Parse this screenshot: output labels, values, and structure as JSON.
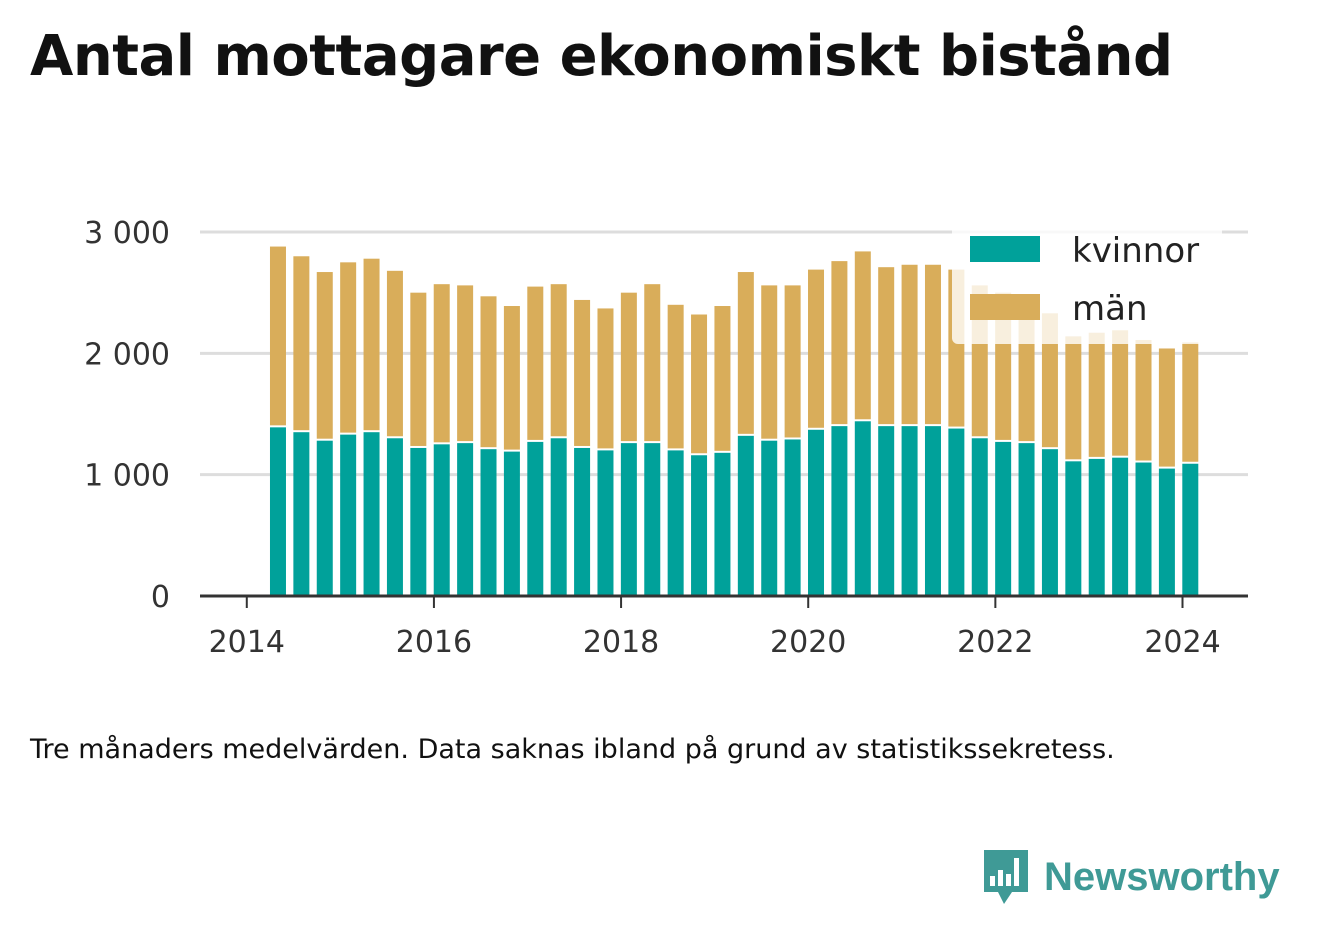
{
  "title": "Antal mottagare ekonomiskt bistånd",
  "note": "Tre månaders medelvärden. Data saknas ibland på grund av statistikssekretess.",
  "brand": {
    "name": "Newsworthy",
    "icon": "bar-chart-speech-icon",
    "color": "#3f9a96"
  },
  "colors": {
    "kvinnor": "#00a19a",
    "man": "#d9ad5a",
    "grid": "#dddddd",
    "axis": "#333333"
  },
  "chart_data": {
    "type": "bar",
    "stacked": true,
    "x": [
      "2014-05",
      "2014-08",
      "2014-11",
      "2015-02",
      "2015-05",
      "2015-08",
      "2015-11",
      "2016-02",
      "2016-05",
      "2016-08",
      "2016-11",
      "2017-02",
      "2017-05",
      "2017-08",
      "2017-11",
      "2018-02",
      "2018-05",
      "2018-08",
      "2018-11",
      "2019-02",
      "2019-05",
      "2019-08",
      "2019-11",
      "2020-02",
      "2020-05",
      "2020-08",
      "2020-11",
      "2021-02",
      "2021-05",
      "2021-08",
      "2021-11",
      "2022-02",
      "2022-05",
      "2022-08",
      "2022-11",
      "2023-02",
      "2023-05",
      "2023-08",
      "2023-11",
      "2024-02"
    ],
    "series": [
      {
        "name": "kvinnor",
        "values": [
          1390,
          1350,
          1280,
          1330,
          1350,
          1300,
          1220,
          1250,
          1260,
          1210,
          1190,
          1270,
          1300,
          1220,
          1200,
          1260,
          1260,
          1200,
          1160,
          1180,
          1320,
          1280,
          1290,
          1370,
          1400,
          1440,
          1400,
          1400,
          1400,
          1380,
          1300,
          1270,
          1260,
          1210,
          1110,
          1130,
          1140,
          1100,
          1050,
          1090
        ]
      },
      {
        "name": "män",
        "values": [
          1490,
          1450,
          1390,
          1420,
          1430,
          1380,
          1280,
          1320,
          1300,
          1260,
          1200,
          1280,
          1270,
          1220,
          1170,
          1240,
          1310,
          1200,
          1160,
          1210,
          1350,
          1280,
          1270,
          1320,
          1360,
          1400,
          1310,
          1330,
          1330,
          1310,
          1260,
          1230,
          1180,
          1120,
          1030,
          1040,
          1050,
          1010,
          990,
          1000
        ]
      }
    ],
    "xlim": [
      2013.5,
      2024.7
    ],
    "x_ticks": [
      "2014",
      "2016",
      "2018",
      "2020",
      "2022",
      "2024"
    ],
    "ylim": [
      0,
      3000
    ],
    "y_ticks": [
      "0",
      "1 000",
      "2 000",
      "3 000"
    ],
    "grid": "horizontal",
    "legend": {
      "position": "top-right",
      "entries": [
        "kvinnor",
        "män"
      ]
    }
  }
}
